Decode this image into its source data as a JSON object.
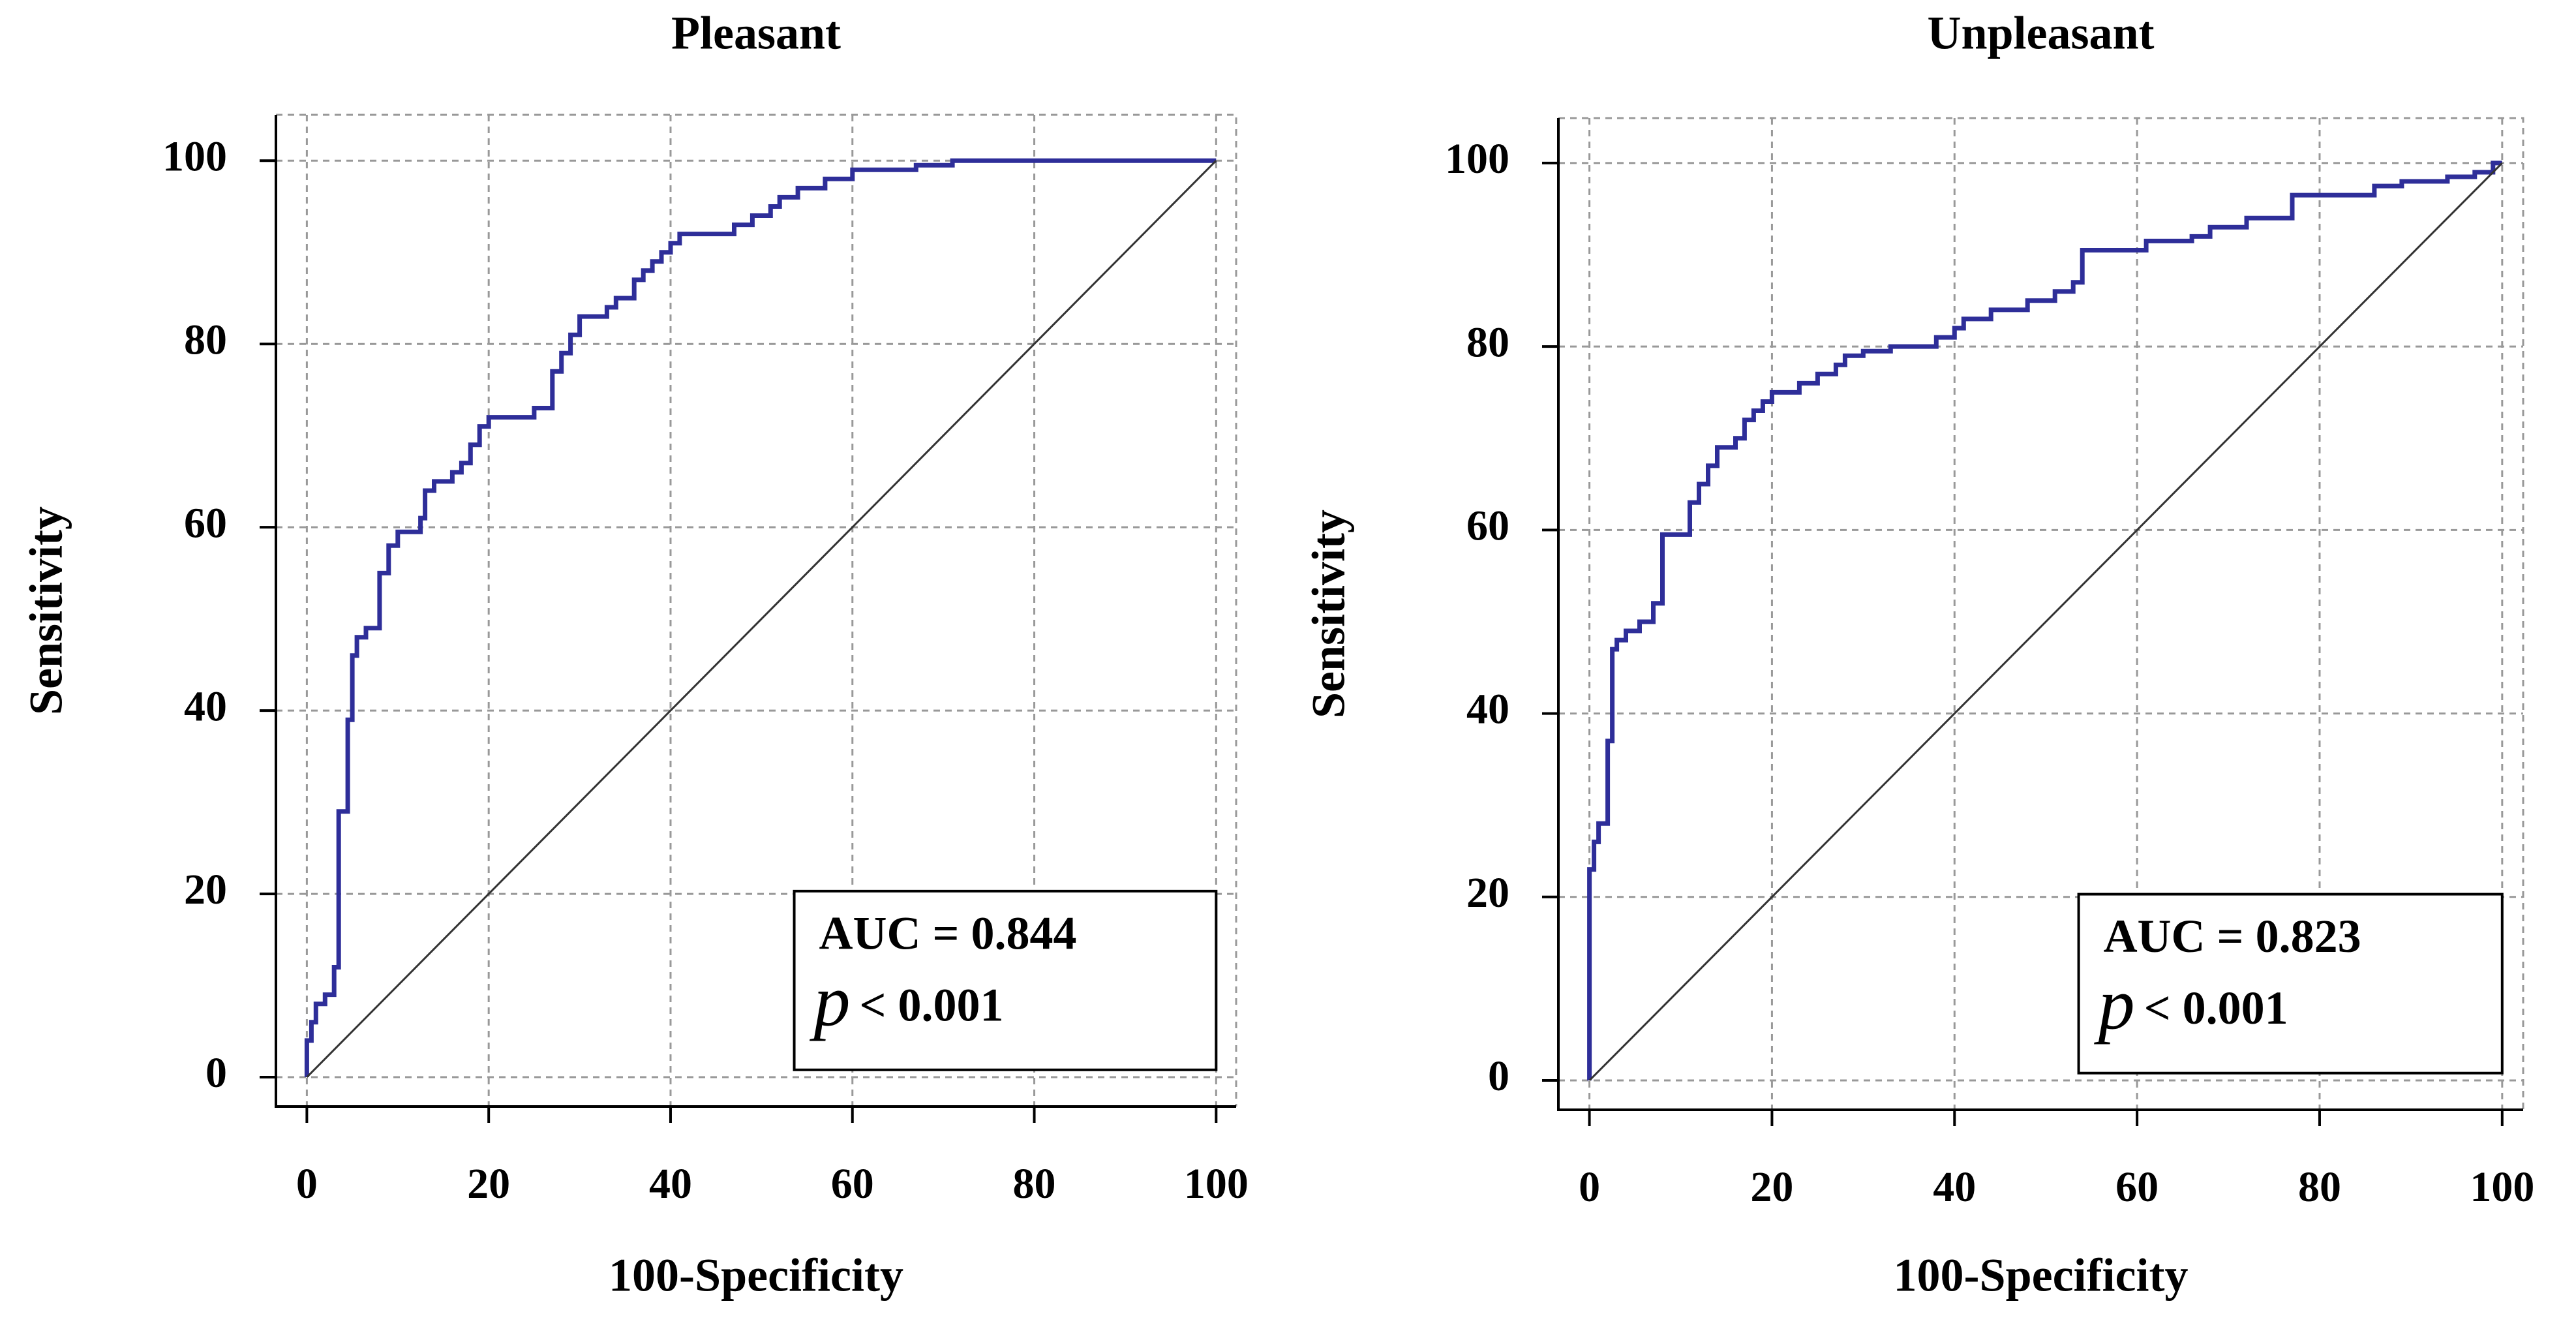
{
  "chart_data": [
    {
      "type": "line",
      "title": "Pleasant",
      "x_label": "100-Specificity",
      "y_label": "Sensitivity",
      "xlim": [
        -3.4,
        102.2
      ],
      "ylim": [
        -3.2,
        105
      ],
      "xticks": [
        0,
        20,
        40,
        60,
        80,
        100
      ],
      "yticks": [
        0,
        20,
        40,
        60,
        80,
        100
      ],
      "grid": true,
      "annotation": {
        "auc": "AUC = 0.844",
        "p_symbol": "p",
        "p_text": "< 0.001"
      },
      "series": [
        {
          "color": "#2e2e99",
          "x": [
            0,
            0,
            0.5,
            0.5,
            1,
            1,
            2,
            2,
            3,
            3,
            3.5,
            3.5,
            4.5,
            4.5,
            5,
            5,
            5.5,
            5.5,
            6.5,
            6.5,
            8,
            8,
            9,
            9,
            10,
            10,
            12.5,
            12.5,
            13,
            13,
            14,
            14,
            16,
            16,
            17,
            17,
            18,
            18,
            19,
            19,
            20,
            20,
            25,
            25,
            27,
            27,
            28,
            28,
            29,
            29,
            30,
            30,
            33,
            33,
            34,
            34,
            36,
            36,
            37,
            37,
            38,
            38,
            39,
            39,
            40,
            40,
            41,
            41,
            47,
            47,
            49,
            49,
            51,
            51,
            52,
            52,
            54,
            54,
            57,
            57,
            60,
            60,
            67,
            67,
            71,
            71,
            100
          ],
          "values": [
            0,
            4,
            4,
            6,
            6,
            8,
            8,
            9,
            9,
            12,
            12,
            29,
            29,
            39,
            39,
            46,
            46,
            48,
            48,
            49,
            49,
            55,
            55,
            58,
            58,
            59.5,
            59.5,
            61,
            61,
            64,
            64,
            65,
            65,
            66,
            66,
            67,
            67,
            69,
            69,
            71,
            71,
            72,
            72,
            73,
            73,
            77,
            77,
            79,
            79,
            81,
            81,
            83,
            83,
            84,
            84,
            85,
            85,
            87,
            87,
            88,
            88,
            89,
            89,
            90,
            90,
            91,
            91,
            92,
            92,
            93,
            93,
            94,
            94,
            95,
            95,
            96,
            96,
            97,
            97,
            98,
            98,
            99,
            99,
            99.5,
            99.5,
            100,
            100
          ]
        },
        {
          "color": "#333333",
          "x": [
            0,
            100
          ],
          "values": [
            0,
            100
          ]
        }
      ]
    },
    {
      "type": "line",
      "title": "Unpleasant",
      "x_label": "100-Specificity",
      "y_label": "Sensitivity",
      "xlim": [
        -3.4,
        102.3
      ],
      "ylim": [
        -3.2,
        104.9
      ],
      "xticks": [
        0,
        20,
        40,
        60,
        80,
        100
      ],
      "yticks": [
        0,
        20,
        40,
        60,
        80,
        100
      ],
      "grid": true,
      "annotation": {
        "auc": "AUC = 0.823",
        "p_symbol": "p",
        "p_text": "< 0.001"
      },
      "series": [
        {
          "color": "#2e2e99",
          "x": [
            0,
            0,
            0.5,
            0.5,
            1,
            1,
            2,
            2,
            2.5,
            2.5,
            3,
            3,
            4,
            4,
            5.5,
            5.5,
            7,
            7,
            8,
            8,
            11,
            11,
            12,
            12,
            13,
            13,
            14,
            14,
            16,
            16,
            17,
            17,
            18,
            18,
            19,
            19,
            20,
            20,
            23,
            23,
            25,
            25,
            27,
            27,
            28,
            28,
            30,
            30,
            33,
            33,
            38,
            38,
            40,
            40,
            41,
            41,
            44,
            44,
            48,
            48,
            51,
            51,
            53,
            53,
            54,
            54,
            61,
            61,
            66,
            66,
            68,
            68,
            72,
            72,
            77,
            77,
            86,
            86,
            89,
            89,
            94,
            94,
            97,
            97,
            99,
            99,
            100
          ],
          "values": [
            0,
            23,
            23,
            26,
            26,
            28,
            28,
            37,
            37,
            47,
            47,
            48,
            48,
            49,
            49,
            50,
            50,
            52,
            52,
            59.5,
            59.5,
            63,
            63,
            65,
            65,
            67,
            67,
            69,
            69,
            70,
            70,
            72,
            72,
            73,
            73,
            74,
            74,
            75,
            75,
            76,
            76,
            77,
            77,
            78,
            78,
            79,
            79,
            79.5,
            79.5,
            80,
            80,
            81,
            81,
            82,
            82,
            83,
            83,
            84,
            84,
            85,
            85,
            86,
            86,
            87,
            87,
            90.5,
            90.5,
            91.5,
            91.5,
            92,
            92,
            93,
            93,
            94,
            94,
            96.5,
            96.5,
            97.5,
            97.5,
            98,
            98,
            98.5,
            98.5,
            99,
            99,
            100,
            100
          ]
        },
        {
          "color": "#333333",
          "x": [
            0,
            100
          ],
          "values": [
            0,
            100
          ]
        }
      ]
    }
  ]
}
